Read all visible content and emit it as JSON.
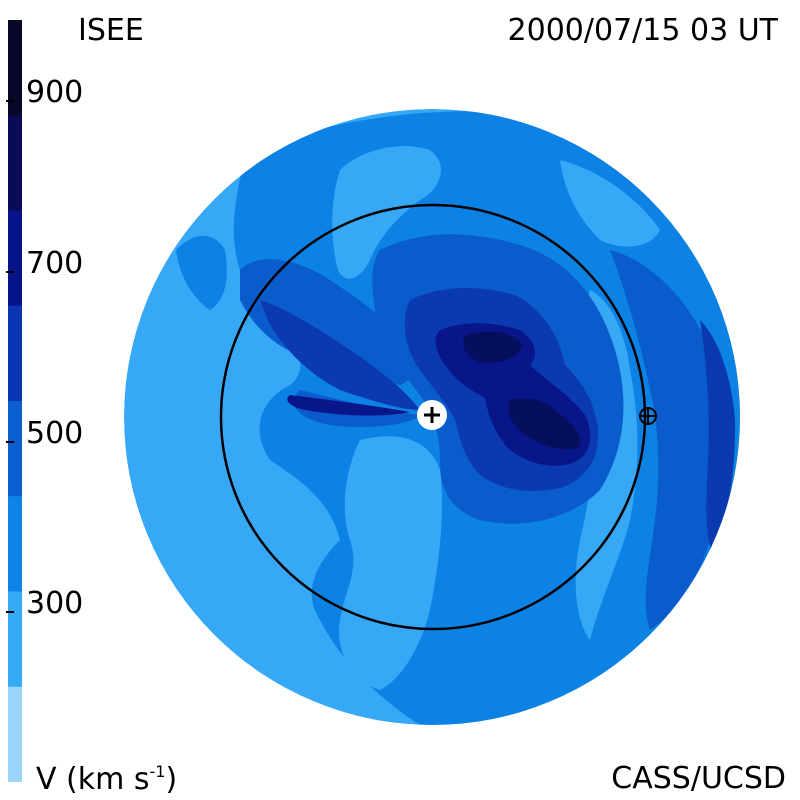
{
  "header": {
    "source": "ISEE",
    "timestamp": "2000/07/15 03 UT"
  },
  "footer": {
    "credit": "CASS/UCSD"
  },
  "colorbar": {
    "label_prefix": "V (km s",
    "label_exp": "-1",
    "label_suffix": ")",
    "ticks": [
      "900",
      "700",
      "500",
      "300"
    ],
    "bands": [
      "#080828",
      "#0a0a55",
      "#08148a",
      "#0a36b4",
      "#0b5ed0",
      "#0e85e6",
      "#35aaf5",
      "#9ad6fb"
    ]
  },
  "map": {
    "colors": {
      "base": "#36a8f6",
      "level2": "#0d82e5",
      "level3": "#0a5ccd",
      "level4": "#0b3ab0",
      "level5": "#08168a",
      "level6": "#060f5e",
      "orbit": "#000000",
      "sun_marker": "#ffffff"
    },
    "markers": [
      "sun-marker",
      "earth-marker"
    ]
  }
}
